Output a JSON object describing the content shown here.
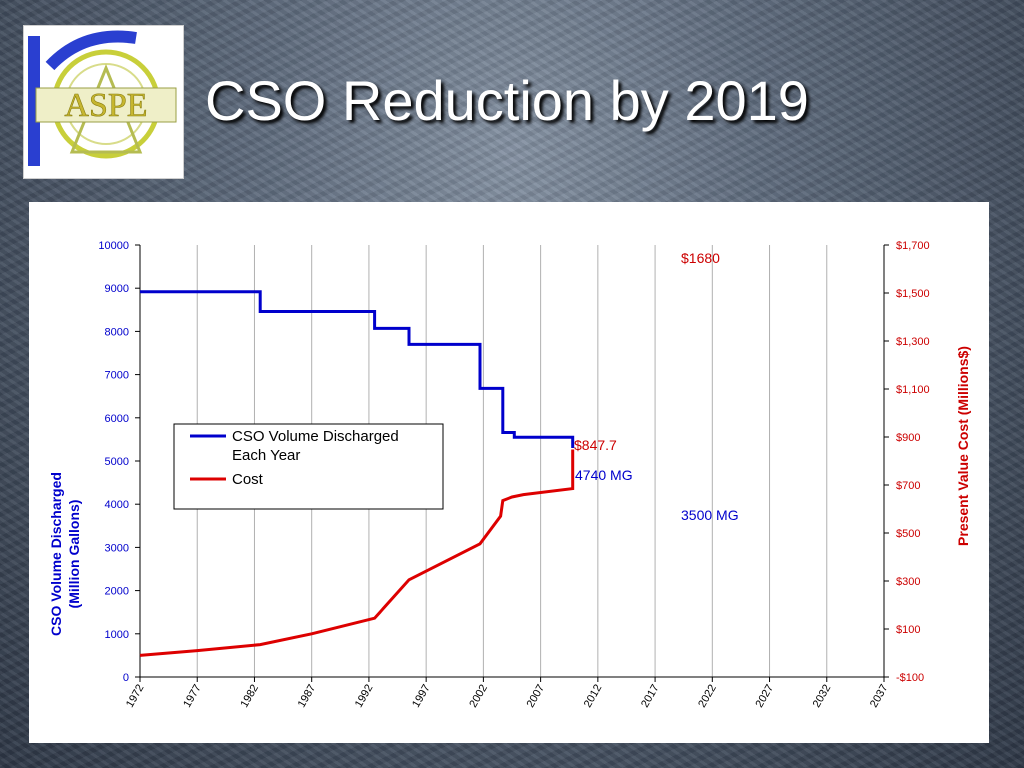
{
  "slide": {
    "title": "CSO Reduction by 2019",
    "logo_text": "ASPE"
  },
  "colors": {
    "volume": "#0000cc",
    "cost": "#dd0000",
    "grid": "#b0b0b0"
  },
  "chart_data": {
    "type": "line",
    "title": "",
    "xlabel": "",
    "ylabel_left": [
      "CSO Volume Discharged",
      "(Million Gallons)"
    ],
    "ylabel_right": "Present Value Cost (Millions$)",
    "xlim": [
      1972,
      2037
    ],
    "ylim_left": [
      0,
      10000
    ],
    "ylim_right": [
      -100,
      1700
    ],
    "x_ticks": [
      "1972",
      "1977",
      "1982",
      "1987",
      "1992",
      "1997",
      "2002",
      "2007",
      "2012",
      "2017",
      "2022",
      "2027",
      "2032",
      "2037"
    ],
    "y_ticks_left": [
      "0",
      "1000",
      "2000",
      "3000",
      "4000",
      "5000",
      "6000",
      "7000",
      "8000",
      "9000",
      "10000"
    ],
    "y_ticks_right": [
      "-$100",
      "$100",
      "$300",
      "$500",
      "$700",
      "$900",
      "$1,100",
      "$1,300",
      "$1,500",
      "$1,700"
    ],
    "grid": "vertical",
    "legend_position": "left-middle",
    "series": [
      {
        "name": "CSO Volume Discharged Each Year",
        "axis": "left",
        "x": [
          1972,
          1982.5,
          1982.5,
          1992.5,
          1992.5,
          1995.5,
          1995.5,
          2001.7,
          2001.7,
          2003.7,
          2003.7,
          2004.7,
          2004.7,
          2009.8,
          2009.8
        ],
        "y": [
          8920,
          8920,
          8460,
          8460,
          8070,
          8070,
          7700,
          7700,
          6680,
          6680,
          5660,
          5660,
          5550,
          5550,
          5300
        ]
      },
      {
        "name": "Cost",
        "axis": "right",
        "x": [
          1972,
          1977,
          1982.5,
          1987,
          1992.5,
          1995.5,
          2001.7,
          2003.5,
          2003.7,
          2004.5,
          2005.5,
          2009.8,
          2009.8
        ],
        "y": [
          -10,
          10,
          35,
          80,
          145,
          305,
          455,
          570,
          635,
          650,
          660,
          685,
          848
        ]
      }
    ],
    "legend": [
      {
        "label": [
          "CSO Volume Discharged",
          "Each Year"
        ],
        "color": "#0000cc"
      },
      {
        "label": [
          "Cost"
        ],
        "color": "#dd0000"
      }
    ],
    "annotations": [
      {
        "text": "$1680",
        "color": "#cc0000"
      },
      {
        "text": "$847.7",
        "color": "#cc0000"
      },
      {
        "text": "4740 MG",
        "color": "#0000cc"
      },
      {
        "text": "3500 MG",
        "color": "#0000cc"
      }
    ]
  }
}
